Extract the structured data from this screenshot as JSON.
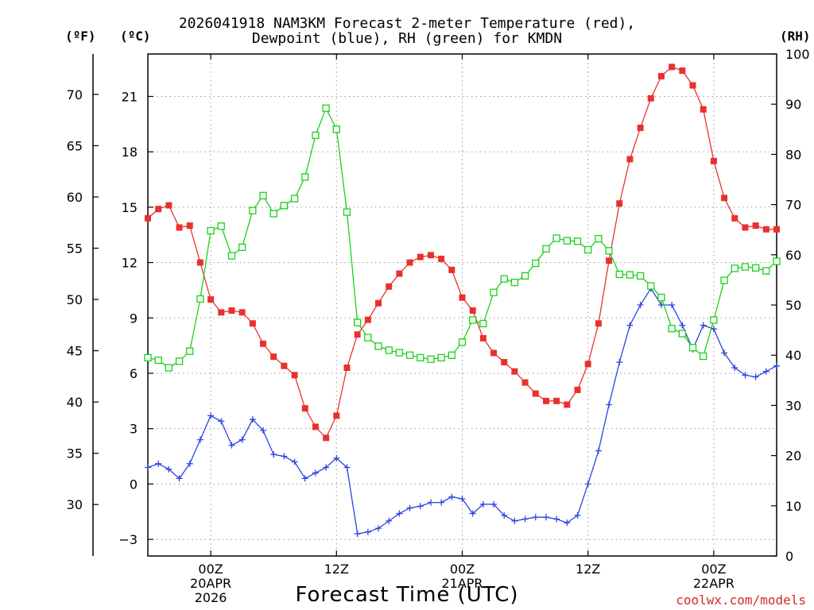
{
  "header": {
    "title_line1": "2026041918 NAM3KM Forecast 2-meter Temperature (red),",
    "title_line2": "Dewpoint (blue), RH (green) for KMDN",
    "unit_f": "(ºF)",
    "unit_c": "(ºC)",
    "unit_rh": "(RH)"
  },
  "footer": {
    "xlabel": "Forecast Time (UTC)",
    "credit": "coolwx.com/models"
  },
  "colors": {
    "temperature": "#e8312f",
    "dewpoint": "#2a45e0",
    "rh": "#1ad11a",
    "grid": "#9a9a9a"
  },
  "chart_data": {
    "type": "line",
    "title": "2026041918 NAM3KM Forecast 2-meter Temperature (red), Dewpoint (blue), RH (green) for KMDN",
    "xlabel": "Forecast Time (UTC)",
    "x_unit": "forecast hour",
    "x": [
      0,
      1,
      2,
      3,
      4,
      5,
      6,
      7,
      8,
      9,
      10,
      11,
      12,
      13,
      14,
      15,
      16,
      17,
      18,
      19,
      20,
      21,
      22,
      23,
      24,
      25,
      26,
      27,
      28,
      29,
      30,
      31,
      32,
      33,
      34,
      35,
      36,
      37,
      38,
      39,
      40,
      41,
      42,
      43,
      44,
      45,
      46,
      47,
      48,
      49,
      50,
      51,
      52,
      53,
      54,
      55,
      56,
      57,
      58,
      59,
      60
    ],
    "xlim": [
      0,
      60
    ],
    "x_ticks": [
      {
        "hour": 6,
        "lines": [
          "00Z",
          "20APR",
          "2026"
        ]
      },
      {
        "hour": 18,
        "lines": [
          "12Z"
        ]
      },
      {
        "hour": 30,
        "lines": [
          "00Z",
          "21APR"
        ]
      },
      {
        "hour": 42,
        "lines": [
          "12Z"
        ]
      },
      {
        "hour": 54,
        "lines": [
          "00Z",
          "22APR"
        ]
      }
    ],
    "y_left_c": {
      "label": "(ºC)",
      "lim": [
        -3.9,
        23.3
      ],
      "ticks": [
        -3,
        0,
        3,
        6,
        9,
        12,
        15,
        18,
        21
      ]
    },
    "y_left_f": {
      "label": "(ºF)",
      "ticks": [
        30,
        35,
        40,
        45,
        50,
        55,
        60,
        65,
        70
      ]
    },
    "y_right_rh": {
      "label": "(RH)",
      "lim": [
        0,
        100
      ],
      "ticks": [
        0,
        10,
        20,
        30,
        40,
        50,
        60,
        70,
        80,
        90,
        100
      ]
    },
    "grid": true,
    "series": [
      {
        "name": "Temperature",
        "unit": "ºC",
        "color": "#e8312f",
        "marker": "filled-square",
        "values": [
          14.4,
          14.9,
          15.1,
          13.9,
          14.0,
          12.0,
          10.0,
          9.3,
          9.4,
          9.3,
          8.7,
          7.6,
          6.9,
          6.4,
          5.9,
          4.1,
          3.1,
          2.5,
          3.7,
          6.3,
          8.1,
          8.9,
          9.8,
          10.7,
          11.4,
          12.0,
          12.3,
          12.4,
          12.2,
          11.6,
          10.1,
          9.4,
          7.9,
          7.1,
          6.6,
          6.1,
          5.5,
          4.9,
          4.5,
          4.5,
          4.3,
          5.1,
          6.5,
          8.7,
          12.1,
          15.2,
          17.6,
          19.3,
          20.9,
          22.1,
          22.6,
          22.4,
          21.6,
          20.3,
          17.5,
          15.5,
          14.4,
          13.9,
          14.0,
          13.8,
          13.8
        ]
      },
      {
        "name": "Dewpoint",
        "unit": "ºC",
        "color": "#2a45e0",
        "marker": "plus",
        "values": [
          0.9,
          1.1,
          0.8,
          0.3,
          1.1,
          2.4,
          3.7,
          3.4,
          2.1,
          2.4,
          3.5,
          2.9,
          1.6,
          1.5,
          1.2,
          0.3,
          0.6,
          0.9,
          1.4,
          0.9,
          -2.7,
          -2.6,
          -2.4,
          -2.0,
          -1.6,
          -1.3,
          -1.2,
          -1.0,
          -1.0,
          -0.7,
          -0.8,
          -1.6,
          -1.1,
          -1.1,
          -1.7,
          -2.0,
          -1.9,
          -1.8,
          -1.8,
          -1.9,
          -2.1,
          -1.7,
          0.0,
          1.8,
          4.3,
          6.6,
          8.6,
          9.7,
          10.6,
          9.7,
          9.7,
          8.6,
          7.3,
          8.6,
          8.4,
          7.1,
          6.3,
          5.9,
          5.8,
          6.1,
          6.4
        ]
      },
      {
        "name": "RH",
        "unit": "%",
        "color": "#1ad11a",
        "marker": "open-square",
        "values": [
          39.5,
          39.0,
          37.5,
          38.8,
          40.8,
          51.2,
          64.8,
          65.7,
          59.8,
          61.5,
          68.8,
          71.8,
          68.2,
          69.8,
          71.2,
          75.5,
          83.8,
          89.2,
          85.0,
          68.5,
          46.5,
          43.5,
          41.8,
          41.0,
          40.5,
          40.0,
          39.5,
          39.2,
          39.5,
          40.0,
          42.6,
          47.0,
          46.3,
          52.5,
          55.2,
          54.5,
          55.8,
          58.3,
          61.2,
          63.3,
          62.8,
          62.7,
          61.0,
          63.2,
          60.8,
          56.1,
          56.0,
          55.8,
          53.8,
          51.5,
          45.3,
          44.3,
          41.5,
          39.8,
          47.0,
          54.9,
          57.3,
          57.6,
          57.4,
          56.8,
          58.7
        ]
      }
    ]
  }
}
